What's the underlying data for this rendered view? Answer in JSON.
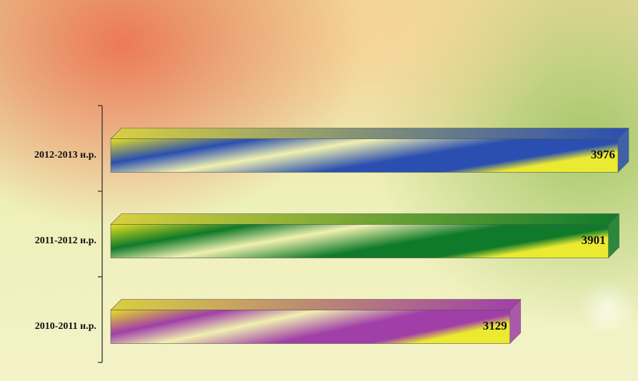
{
  "chart_data": {
    "type": "bar3d-horizontal",
    "categories": [
      "2012-2013 н.р.",
      "2011-2012 н.р.",
      "2010-2011 н.р."
    ],
    "values": [
      3976,
      3901,
      3129
    ],
    "colors": [
      "#2a4fb0",
      "#0f7a2a",
      "#a03fa8"
    ]
  }
}
